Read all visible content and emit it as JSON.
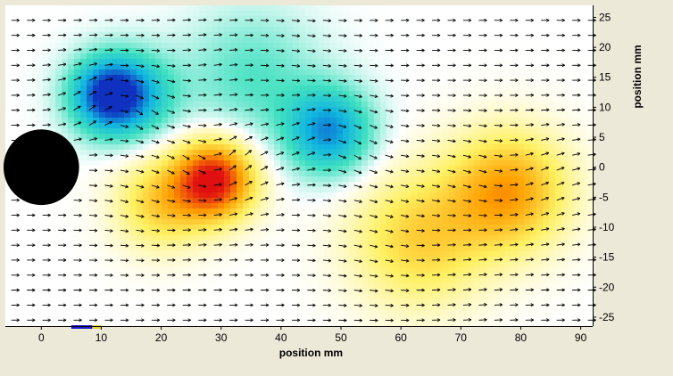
{
  "chart_data": {
    "type": "heatmap",
    "title": "",
    "xlabel": "position mm",
    "ylabel": "position mm",
    "x_range": [
      -6,
      92
    ],
    "y_range": [
      -26.5,
      27
    ],
    "x_ticks": [
      0,
      10,
      20,
      30,
      40,
      50,
      60,
      70,
      80,
      90
    ],
    "y_ticks": [
      25,
      20,
      15,
      10,
      5,
      0,
      -5,
      -10,
      -15,
      -20,
      -25
    ],
    "y_axis_side": "right",
    "grid": false,
    "legend": "none",
    "colormap": [
      "#1030c0",
      "#10b4e0",
      "#40e0c0",
      "#ffffff",
      "#fff060",
      "#ffa000",
      "#e01010"
    ],
    "color_range": [
      -1,
      1
    ],
    "cylinder": {
      "center_x": 0,
      "center_y": 0,
      "radius": 6.3,
      "color": "#000000"
    },
    "field_features": [
      {
        "kind": "vortex",
        "x": 11,
        "y": 12,
        "strength": -0.9,
        "spread": 4.5
      },
      {
        "kind": "vortex",
        "x": 16,
        "y": 12,
        "strength": -0.45,
        "spread": 5
      },
      {
        "kind": "vortex",
        "x": 29,
        "y": -2,
        "strength": 1.0,
        "spread": 4.8
      },
      {
        "kind": "vortex",
        "x": 20,
        "y": -6,
        "strength": 0.45,
        "spread": 5.5
      },
      {
        "kind": "vortex",
        "x": 48,
        "y": 6,
        "strength": -0.75,
        "spread": 5
      },
      {
        "kind": "vortex",
        "x": 78,
        "y": -4,
        "strength": 0.65,
        "spread": 7
      },
      {
        "kind": "vortex",
        "x": 63,
        "y": -12,
        "strength": 0.45,
        "spread": 8
      },
      {
        "kind": "vortex",
        "x": 35,
        "y": 15,
        "strength": -0.3,
        "spread": 8
      }
    ],
    "freestream_velocity": [
      1,
      0
    ],
    "vector_grid": {
      "x_step": 2.6,
      "y_step": 2.5
    },
    "markers": [
      {
        "x0": 5,
        "x1": 8.5,
        "y": -27,
        "color": "#1a1acc"
      },
      {
        "x0": 8.5,
        "x1": 10,
        "y": -27,
        "color": "#e0d040"
      }
    ]
  }
}
